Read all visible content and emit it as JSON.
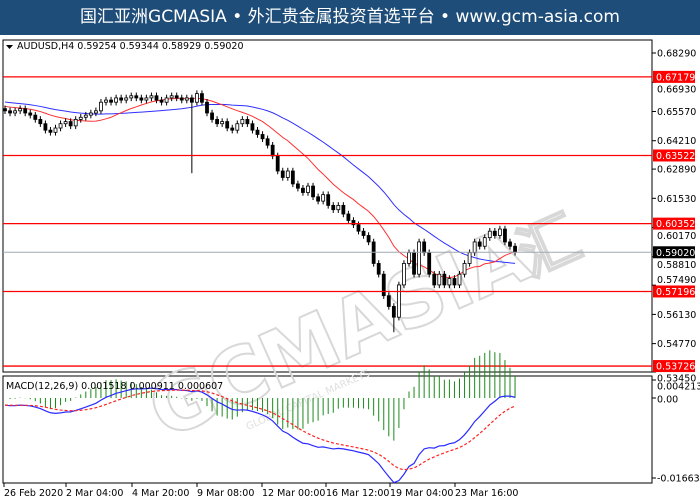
{
  "banner": {
    "text": "国汇亚洲GCMASIA • 外汇贵金属投资首选平台 • www.gcm-asia.com"
  },
  "watermark": {
    "text": "GCMASIA",
    "sub": "GLOBAL CAPITAL MARKETS",
    "cn": "汇"
  },
  "colors": {
    "bg": "#ffffff",
    "banner": "#1d4d78",
    "level": "#ff0000",
    "ma_fast": "#ff3030",
    "ma_slow": "#3030ff",
    "macd_hist": "#1a8a1a",
    "macd_line": "#2a2aff",
    "signal": "#ff2020",
    "current": "#000000"
  },
  "chart_data": [
    {
      "type": "candlestick",
      "symbol": "AUDUSD,H4",
      "header": "AUDUSD,H4  0.59254 0.59344 0.58929 0.59020",
      "ohlc_last": {
        "open": 0.59254,
        "high": 0.59344,
        "low": 0.58929,
        "close": 0.5902
      },
      "ylim": [
        0.5345,
        0.6829
      ],
      "y_ticks": [
        "0.68290",
        "0.66930",
        "0.65570",
        "0.64210",
        "0.62890",
        "0.61530",
        "0.60170",
        "0.58810",
        "0.57490",
        "0.56130",
        "0.54770",
        "0.53450"
      ],
      "levels": [
        "0.67179",
        "0.63522",
        "0.60352",
        "0.57196",
        "0.53726"
      ],
      "current_price": "0.59020",
      "closes": [
        0.656,
        0.655,
        0.656,
        0.657,
        0.655,
        0.654,
        0.652,
        0.65,
        0.647,
        0.646,
        0.648,
        0.65,
        0.651,
        0.649,
        0.652,
        0.653,
        0.654,
        0.655,
        0.656,
        0.66,
        0.661,
        0.66,
        0.662,
        0.661,
        0.662,
        0.663,
        0.662,
        0.661,
        0.662,
        0.663,
        0.661,
        0.66,
        0.662,
        0.663,
        0.662,
        0.661,
        0.662,
        0.66,
        0.664,
        0.66,
        0.655,
        0.652,
        0.65,
        0.651,
        0.648,
        0.647,
        0.65,
        0.652,
        0.65,
        0.647,
        0.645,
        0.643,
        0.64,
        0.635,
        0.628,
        0.625,
        0.628,
        0.622,
        0.62,
        0.618,
        0.621,
        0.616,
        0.614,
        0.617,
        0.612,
        0.61,
        0.612,
        0.608,
        0.605,
        0.603,
        0.6,
        0.598,
        0.595,
        0.585,
        0.58,
        0.57,
        0.565,
        0.56,
        0.575,
        0.585,
        0.59,
        0.58,
        0.595,
        0.59,
        0.58,
        0.575,
        0.58,
        0.575,
        0.578,
        0.575,
        0.58,
        0.585,
        0.59,
        0.595,
        0.593,
        0.597,
        0.6,
        0.598,
        0.601,
        0.595,
        0.593,
        0.5902
      ],
      "spike_low": {
        "index": 37,
        "low": 0.627
      },
      "crash_low": {
        "index": 77,
        "low": 0.553
      }
    },
    {
      "type": "macd",
      "label": "MACD(12,26,9) 0.001518 0.000911 0.000607",
      "y_ticks": [
        "0.004213",
        "0.00",
        "-0.01663"
      ],
      "ylim": [
        -0.01663,
        0.004213
      ]
    }
  ],
  "x_ticks": [
    "26 Feb 2020",
    "2 Mar 04:00",
    "4 Mar 20:00",
    "9 Mar 08:00",
    "12 Mar 00:00",
    "16 Mar 12:00",
    "19 Mar 04:00",
    "23 Mar 16:00"
  ]
}
